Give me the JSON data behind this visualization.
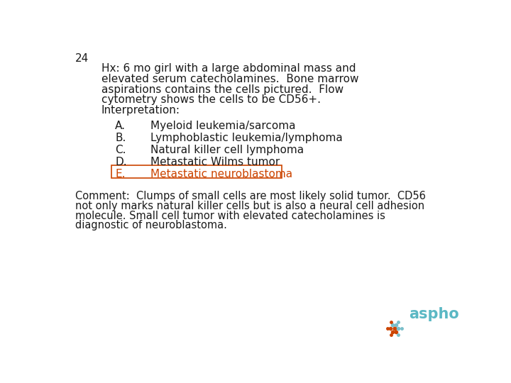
{
  "slide_number": "24",
  "bg_color": "#ffffff",
  "text_color": "#1a1a1a",
  "highlight_color": "#cc4400",
  "aspho_text_color": "#5bb8c4",
  "hx_lines": [
    "Hx: 6 mo girl with a large abdominal mass and",
    "elevated serum catecholamines.  Bone marrow",
    "aspirations contains the cells pictured.  Flow",
    "cytometry shows the cells to be CD56+.",
    "Interpretation:"
  ],
  "options": [
    {
      "letter": "A.",
      "text": "Myeloid leukemia/sarcoma",
      "highlight": false
    },
    {
      "letter": "B.",
      "text": "Lymphoblastic leukemia/lymphoma",
      "highlight": false
    },
    {
      "letter": "C.",
      "text": "Natural killer cell lymphoma",
      "highlight": false
    },
    {
      "letter": "D.",
      "text": "Metastatic Wilms tumor",
      "highlight": false
    },
    {
      "letter": "E.",
      "text": "Metastatic neuroblastoma",
      "highlight": true
    }
  ],
  "comment_lines": [
    "Comment:  Clumps of small cells are most likely solid tumor.  CD56",
    "not only marks natural killer cells but is also a neural cell adhesion",
    "molecule. Small cell tumor with elevated catecholamines is",
    "diagnostic of neuroblastoma."
  ],
  "font_size_slide_num": 11,
  "font_size_hx": 11,
  "font_size_options": 11,
  "font_size_comment": 10.5,
  "font_family": "DejaVu Sans"
}
